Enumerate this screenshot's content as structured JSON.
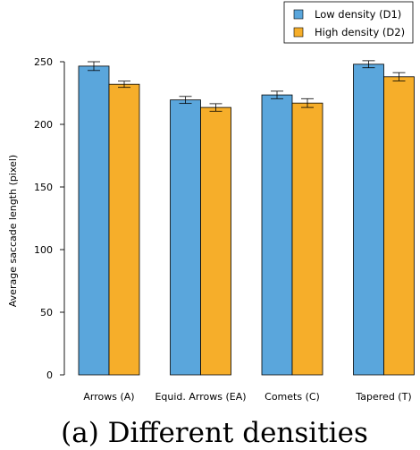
{
  "chart_data": {
    "type": "bar",
    "title": "",
    "caption": "(a)  Different densities",
    "xlabel": "",
    "ylabel": "Average saccade length (pixel)",
    "ylim": [
      0,
      250
    ],
    "yticks": [
      0,
      50,
      100,
      150,
      200,
      250
    ],
    "grid": false,
    "legend_position": "top-right",
    "categories": [
      "Arrows (A)",
      "Equid. Arrows (EA)",
      "Comets (C)",
      "Tapered (T)"
    ],
    "series": [
      {
        "name": "Low density  (D1)",
        "color": "#5aa6dc",
        "values": [
          246.5,
          219.5,
          223.5,
          248.0
        ],
        "errors": [
          3.5,
          2.8,
          3.0,
          2.8
        ]
      },
      {
        "name": "High density (D2)",
        "color": "#f6ae2a",
        "values": [
          232.0,
          213.5,
          217.0,
          238.0
        ],
        "errors": [
          2.5,
          3.0,
          3.5,
          3.3
        ]
      }
    ]
  }
}
